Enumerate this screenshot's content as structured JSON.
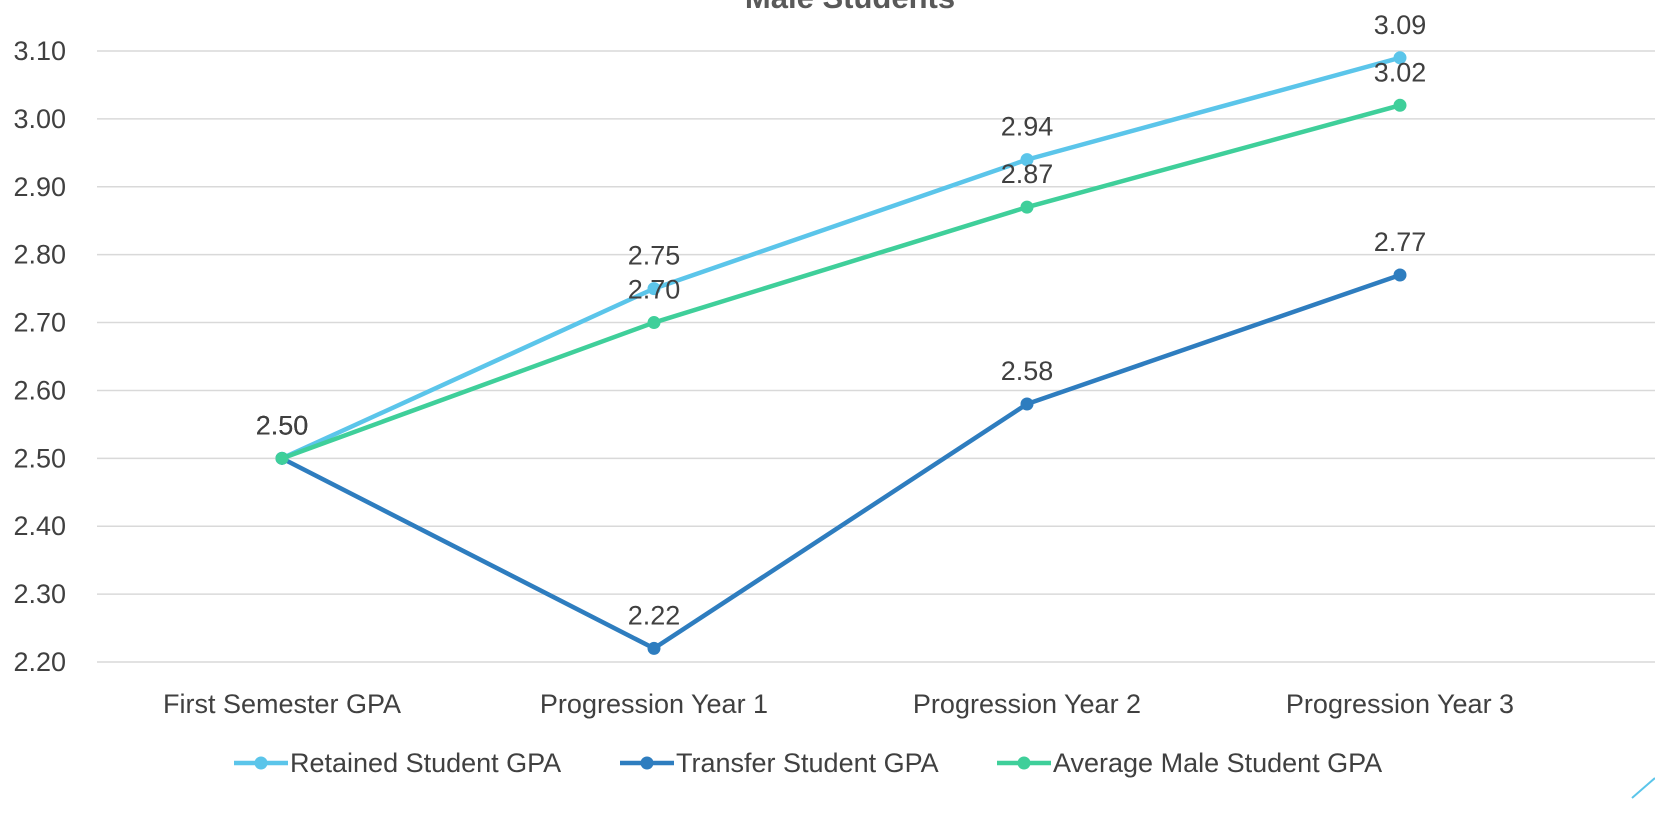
{
  "chart_data": {
    "type": "line",
    "title": "Male Students",
    "categories": [
      "First Semester GPA",
      "Progression Year 1",
      "Progression Year 2",
      "Progression Year 3"
    ],
    "ylim": [
      2.2,
      3.1
    ],
    "yticks": [
      "2.20",
      "2.30",
      "2.40",
      "2.50",
      "2.60",
      "2.70",
      "2.80",
      "2.90",
      "3.00",
      "3.10"
    ],
    "grid": true,
    "legend_position": "bottom",
    "series": [
      {
        "name": "Retained Student GPA",
        "color": "#5bc5ea",
        "values": [
          2.5,
          2.75,
          2.94,
          3.09
        ],
        "labels": [
          "2.50",
          "2.75",
          "2.94",
          "3.09"
        ]
      },
      {
        "name": "Transfer Student GPA",
        "color": "#2e7dbf",
        "values": [
          2.5,
          2.22,
          2.58,
          2.77
        ],
        "labels": [
          "2.50",
          "2.22",
          "2.58",
          "2.77"
        ]
      },
      {
        "name": "Average Male Student GPA",
        "color": "#3fcf9a",
        "values": [
          2.5,
          2.7,
          2.87,
          3.02
        ],
        "labels": [
          "2.50",
          "2.70",
          "2.87",
          "3.02"
        ]
      }
    ]
  }
}
